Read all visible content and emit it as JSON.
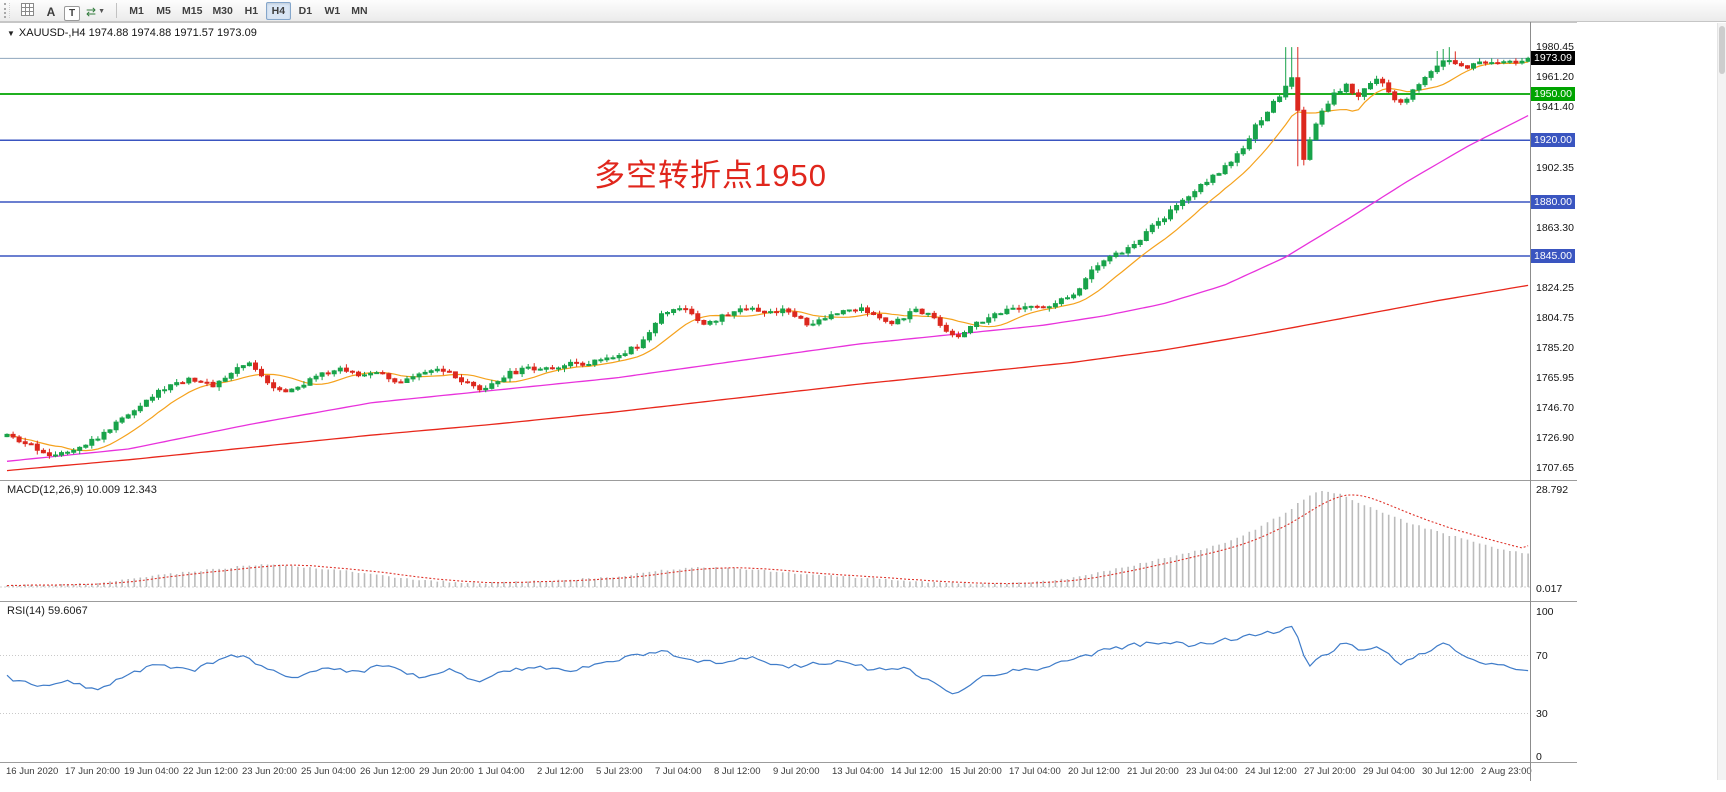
{
  "toolbar": {
    "left_buttons": [
      {
        "name": "chart-grid-icon",
        "glyph": "grid",
        "label": ""
      },
      {
        "name": "annotate-text-button",
        "glyph": "",
        "label": "A"
      },
      {
        "name": "text-box-button",
        "glyph": "",
        "label": "T"
      },
      {
        "name": "cycle-tool-icon",
        "glyph": "cycle",
        "label": ""
      }
    ],
    "timeframes": [
      "M1",
      "M5",
      "M15",
      "M30",
      "H1",
      "H4",
      "D1",
      "W1",
      "MN"
    ],
    "active_timeframe": "H4"
  },
  "chart": {
    "title": "XAUUSD-,H4  1974.88 1974.88 1971.57 1973.09",
    "annotation": {
      "text": "多空转折点1950",
      "color": "#e0261c"
    },
    "current_price": "1973.09",
    "price_axis_labels": [
      "1980.45",
      "1961.20",
      "1941.40",
      "1902.35",
      "1863.30",
      "1824.25",
      "1804.75",
      "1785.20",
      "1765.95",
      "1746.70",
      "1726.90",
      "1707.65"
    ],
    "hlines": [
      {
        "price": 1950.0,
        "label": "1950.00",
        "color": "#00a400"
      },
      {
        "price": 1920.0,
        "label": "1920.00",
        "color": "#3a55c0"
      },
      {
        "price": 1880.0,
        "label": "1880.00",
        "color": "#3a55c0"
      },
      {
        "price": 1845.0,
        "label": "1845.00",
        "color": "#3a55c0"
      }
    ]
  },
  "macd_pane": {
    "label": "MACD(12,26,9) 10.009 12.343",
    "axis_labels": [
      {
        "text": "28.792",
        "pos": "top"
      },
      {
        "text": "0.017",
        "pos": "bottom"
      }
    ]
  },
  "rsi_pane": {
    "label": "RSI(14) 59.6067",
    "axis_labels": [
      "100",
      "70",
      "30",
      "0"
    ],
    "levels": [
      70,
      30
    ]
  },
  "time_axis": [
    "16 Jun 2020",
    "17 Jun 20:00",
    "19 Jun 04:00",
    "22 Jun 12:00",
    "23 Jun 20:00",
    "25 Jun 04:00",
    "26 Jun 12:00",
    "29 Jun 20:00",
    "1 Jul 04:00",
    "2 Jul 12:00",
    "5 Jul 23:00",
    "7 Jul 04:00",
    "8 Jul 12:00",
    "9 Jul 20:00",
    "13 Jul 04:00",
    "14 Jul 12:00",
    "15 Jul 20:00",
    "17 Jul 04:00",
    "20 Jul 12:00",
    "21 Jul 20:00",
    "23 Jul 04:00",
    "24 Jul 12:00",
    "27 Jul 20:00",
    "29 Jul 04:00",
    "30 Jul 12:00",
    "2 Aug 23:00"
  ],
  "colors": {
    "up": "#18a34a",
    "down": "#dc281e",
    "ma_fast": "#f5a21d",
    "ma_mid": "#e832dc",
    "ma_slow": "#e8271b",
    "macd_hist": "#bcbcbc",
    "macd_signal": "#df342b",
    "rsi": "#3f7cc9",
    "bid_line": "#8fa6bd",
    "line_green": "#00a400",
    "line_blue": "#3a55c0",
    "current_badge_bg": "#000000"
  },
  "chart_data": {
    "type": "candlestick",
    "symbol": "XAUUSD-",
    "timeframe": "H4",
    "last_ohlc": {
      "open": 1974.88,
      "high": 1974.88,
      "low": 1971.57,
      "close": 1973.09
    },
    "visible_price_range": [
      1707.65,
      1980.45
    ],
    "horizontal_levels": [
      1950,
      1920,
      1880,
      1845
    ],
    "candle_count": 252,
    "price_path": [
      [
        0,
        1728
      ],
      [
        0.015,
        1722
      ],
      [
        0.03,
        1716
      ],
      [
        0.045,
        1721
      ],
      [
        0.06,
        1727
      ],
      [
        0.075,
        1739
      ],
      [
        0.09,
        1751
      ],
      [
        0.105,
        1760
      ],
      [
        0.12,
        1766
      ],
      [
        0.135,
        1761
      ],
      [
        0.15,
        1771
      ],
      [
        0.16,
        1776
      ],
      [
        0.172,
        1763
      ],
      [
        0.183,
        1757
      ],
      [
        0.195,
        1762
      ],
      [
        0.207,
        1768
      ],
      [
        0.22,
        1772
      ],
      [
        0.232,
        1767
      ],
      [
        0.245,
        1771
      ],
      [
        0.258,
        1762
      ],
      [
        0.272,
        1768
      ],
      [
        0.285,
        1772
      ],
      [
        0.298,
        1764
      ],
      [
        0.312,
        1757
      ],
      [
        0.328,
        1768
      ],
      [
        0.343,
        1772
      ],
      [
        0.358,
        1773
      ],
      [
        0.373,
        1775
      ],
      [
        0.388,
        1777
      ],
      [
        0.403,
        1781
      ],
      [
        0.418,
        1789
      ],
      [
        0.43,
        1806
      ],
      [
        0.44,
        1813
      ],
      [
        0.45,
        1807
      ],
      [
        0.46,
        1800
      ],
      [
        0.47,
        1806
      ],
      [
        0.48,
        1810
      ],
      [
        0.49,
        1812
      ],
      [
        0.5,
        1808
      ],
      [
        0.51,
        1811
      ],
      [
        0.52,
        1804
      ],
      [
        0.53,
        1800
      ],
      [
        0.54,
        1806
      ],
      [
        0.55,
        1810
      ],
      [
        0.56,
        1811
      ],
      [
        0.57,
        1806
      ],
      [
        0.58,
        1802
      ],
      [
        0.59,
        1806
      ],
      [
        0.6,
        1810
      ],
      [
        0.61,
        1805
      ],
      [
        0.617,
        1797
      ],
      [
        0.625,
        1793
      ],
      [
        0.64,
        1803
      ],
      [
        0.655,
        1809
      ],
      [
        0.67,
        1811
      ],
      [
        0.685,
        1813
      ],
      [
        0.7,
        1819
      ],
      [
        0.71,
        1831
      ],
      [
        0.72,
        1842
      ],
      [
        0.73,
        1846
      ],
      [
        0.74,
        1852
      ],
      [
        0.75,
        1861
      ],
      [
        0.76,
        1869
      ],
      [
        0.77,
        1879
      ],
      [
        0.78,
        1887
      ],
      [
        0.79,
        1895
      ],
      [
        0.8,
        1902
      ],
      [
        0.81,
        1911
      ],
      [
        0.82,
        1928
      ],
      [
        0.83,
        1941
      ],
      [
        0.84,
        1953
      ],
      [
        0.846,
        1963
      ],
      [
        0.852,
        1907
      ],
      [
        0.858,
        1925
      ],
      [
        0.865,
        1939
      ],
      [
        0.872,
        1949
      ],
      [
        0.88,
        1956
      ],
      [
        0.888,
        1949
      ],
      [
        0.895,
        1957
      ],
      [
        0.902,
        1961
      ],
      [
        0.909,
        1951
      ],
      [
        0.916,
        1943
      ],
      [
        0.923,
        1950
      ],
      [
        0.93,
        1957
      ],
      [
        0.938,
        1965
      ],
      [
        0.945,
        1974
      ],
      [
        0.952,
        1971
      ],
      [
        0.96,
        1967
      ],
      [
        0.97,
        1971
      ],
      [
        0.98,
        1969
      ],
      [
        0.99,
        1971
      ],
      [
        1,
        1973
      ]
    ],
    "ma_mid_path": [
      [
        0,
        1712
      ],
      [
        0.08,
        1720
      ],
      [
        0.16,
        1736
      ],
      [
        0.24,
        1750
      ],
      [
        0.32,
        1758
      ],
      [
        0.4,
        1766
      ],
      [
        0.48,
        1777
      ],
      [
        0.56,
        1788
      ],
      [
        0.62,
        1794
      ],
      [
        0.68,
        1800
      ],
      [
        0.72,
        1806
      ],
      [
        0.76,
        1814
      ],
      [
        0.8,
        1826
      ],
      [
        0.84,
        1844
      ],
      [
        0.88,
        1868
      ],
      [
        0.92,
        1893
      ],
      [
        0.96,
        1916
      ],
      [
        1,
        1936
      ]
    ],
    "ma_slow_path": [
      [
        0,
        1706
      ],
      [
        0.08,
        1713
      ],
      [
        0.16,
        1721
      ],
      [
        0.24,
        1729
      ],
      [
        0.32,
        1736
      ],
      [
        0.4,
        1744
      ],
      [
        0.48,
        1753
      ],
      [
        0.56,
        1762
      ],
      [
        0.64,
        1770
      ],
      [
        0.7,
        1776
      ],
      [
        0.76,
        1784
      ],
      [
        0.82,
        1794
      ],
      [
        0.88,
        1805
      ],
      [
        0.94,
        1816
      ],
      [
        1,
        1826
      ]
    ],
    "macd": {
      "last_main": 10.009,
      "last_signal": 12.343,
      "max": 28.792,
      "path": [
        [
          0,
          0.4
        ],
        [
          0.03,
          0.6
        ],
        [
          0.06,
          1.2
        ],
        [
          0.09,
          3
        ],
        [
          0.12,
          4.5
        ],
        [
          0.15,
          6
        ],
        [
          0.17,
          6.8
        ],
        [
          0.19,
          6.2
        ],
        [
          0.22,
          5
        ],
        [
          0.25,
          3.2
        ],
        [
          0.28,
          1.8
        ],
        [
          0.31,
          1.2
        ],
        [
          0.34,
          1.6
        ],
        [
          0.37,
          2.2
        ],
        [
          0.4,
          3
        ],
        [
          0.43,
          5
        ],
        [
          0.46,
          6
        ],
        [
          0.49,
          5.2
        ],
        [
          0.52,
          4
        ],
        [
          0.55,
          3.2
        ],
        [
          0.57,
          2.6
        ],
        [
          0.6,
          1.6
        ],
        [
          0.62,
          1.2
        ],
        [
          0.64,
          1
        ],
        [
          0.66,
          1.2
        ],
        [
          0.68,
          1.6
        ],
        [
          0.7,
          2.6
        ],
        [
          0.72,
          4.5
        ],
        [
          0.74,
          6.5
        ],
        [
          0.76,
          8.5
        ],
        [
          0.78,
          10.5
        ],
        [
          0.8,
          13
        ],
        [
          0.82,
          17
        ],
        [
          0.84,
          22
        ],
        [
          0.855,
          27
        ],
        [
          0.865,
          28.8
        ],
        [
          0.875,
          28
        ],
        [
          0.885,
          26
        ],
        [
          0.9,
          23
        ],
        [
          0.92,
          19.5
        ],
        [
          0.94,
          16.5
        ],
        [
          0.96,
          14
        ],
        [
          0.98,
          11.5
        ],
        [
          1,
          10.0
        ]
      ]
    },
    "rsi": {
      "last": 59.6067,
      "path": [
        [
          0,
          55
        ],
        [
          0.02,
          48
        ],
        [
          0.04,
          52
        ],
        [
          0.06,
          45
        ],
        [
          0.08,
          58
        ],
        [
          0.1,
          64
        ],
        [
          0.12,
          59
        ],
        [
          0.14,
          67
        ],
        [
          0.155,
          71
        ],
        [
          0.17,
          60
        ],
        [
          0.19,
          55
        ],
        [
          0.21,
          62
        ],
        [
          0.23,
          58
        ],
        [
          0.25,
          64
        ],
        [
          0.27,
          55
        ],
        [
          0.29,
          60
        ],
        [
          0.31,
          52
        ],
        [
          0.33,
          60
        ],
        [
          0.35,
          62
        ],
        [
          0.37,
          60
        ],
        [
          0.39,
          64
        ],
        [
          0.41,
          69
        ],
        [
          0.43,
          74
        ],
        [
          0.45,
          67
        ],
        [
          0.47,
          65
        ],
        [
          0.49,
          68
        ],
        [
          0.51,
          62
        ],
        [
          0.53,
          64
        ],
        [
          0.55,
          66
        ],
        [
          0.57,
          60
        ],
        [
          0.59,
          62
        ],
        [
          0.61,
          50
        ],
        [
          0.622,
          43
        ],
        [
          0.64,
          55
        ],
        [
          0.66,
          59
        ],
        [
          0.68,
          61
        ],
        [
          0.7,
          67
        ],
        [
          0.72,
          73
        ],
        [
          0.74,
          77
        ],
        [
          0.76,
          79
        ],
        [
          0.78,
          77
        ],
        [
          0.8,
          81
        ],
        [
          0.82,
          84
        ],
        [
          0.835,
          87
        ],
        [
          0.847,
          89
        ],
        [
          0.855,
          62
        ],
        [
          0.868,
          71
        ],
        [
          0.88,
          79
        ],
        [
          0.89,
          74
        ],
        [
          0.9,
          77
        ],
        [
          0.916,
          64
        ],
        [
          0.93,
          71
        ],
        [
          0.945,
          79
        ],
        [
          0.96,
          69
        ],
        [
          0.975,
          64
        ],
        [
          1,
          59.6
        ]
      ]
    }
  }
}
